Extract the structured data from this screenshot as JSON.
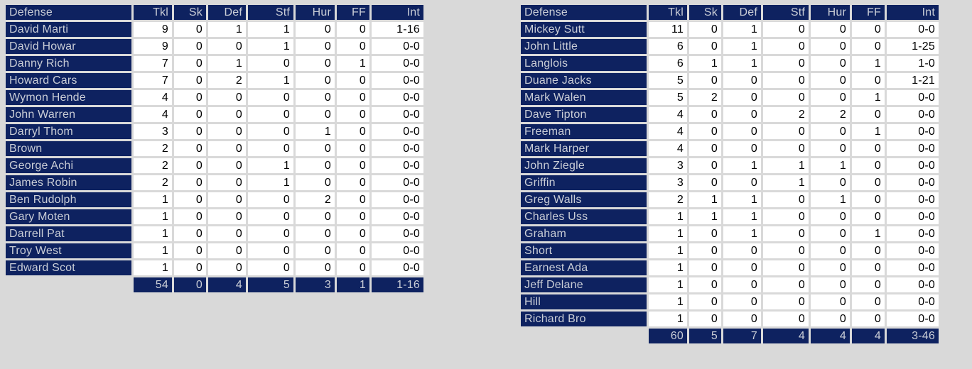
{
  "colors": {
    "page_background": "#d9d9d9",
    "navy_cell": "#0e2260",
    "navy_cell_text": "#c9cdd6",
    "data_cell_background": "#ffffff",
    "data_cell_text": "#000000"
  },
  "tables": [
    {
      "name": "defense-stats-left",
      "header": [
        "Defense",
        "Tkl",
        "Sk",
        "Def",
        "Stf",
        "Hur",
        "FF",
        "Int"
      ],
      "rows": [
        [
          "David Marti",
          "9",
          "0",
          "1",
          "1",
          "0",
          "0",
          "1-16"
        ],
        [
          "David Howar",
          "9",
          "0",
          "0",
          "1",
          "0",
          "0",
          "0-0"
        ],
        [
          "Danny Rich",
          "7",
          "0",
          "1",
          "0",
          "0",
          "1",
          "0-0"
        ],
        [
          "Howard Cars",
          "7",
          "0",
          "2",
          "1",
          "0",
          "0",
          "0-0"
        ],
        [
          "Wymon Hende",
          "4",
          "0",
          "0",
          "0",
          "0",
          "0",
          "0-0"
        ],
        [
          "John Warren",
          "4",
          "0",
          "0",
          "0",
          "0",
          "0",
          "0-0"
        ],
        [
          "Darryl Thom",
          "3",
          "0",
          "0",
          "0",
          "1",
          "0",
          "0-0"
        ],
        [
          "Brown",
          "2",
          "0",
          "0",
          "0",
          "0",
          "0",
          "0-0"
        ],
        [
          "George Achi",
          "2",
          "0",
          "0",
          "1",
          "0",
          "0",
          "0-0"
        ],
        [
          "James Robin",
          "2",
          "0",
          "0",
          "1",
          "0",
          "0",
          "0-0"
        ],
        [
          "Ben Rudolph",
          "1",
          "0",
          "0",
          "0",
          "2",
          "0",
          "0-0"
        ],
        [
          "Gary Moten",
          "1",
          "0",
          "0",
          "0",
          "0",
          "0",
          "0-0"
        ],
        [
          "Darrell Pat",
          "1",
          "0",
          "0",
          "0",
          "0",
          "0",
          "0-0"
        ],
        [
          "Troy West",
          "1",
          "0",
          "0",
          "0",
          "0",
          "0",
          "0-0"
        ],
        [
          "Edward Scot",
          "1",
          "0",
          "0",
          "0",
          "0",
          "0",
          "0-0"
        ]
      ],
      "totals": [
        "",
        "54",
        "0",
        "4",
        "5",
        "3",
        "1",
        "1-16"
      ]
    },
    {
      "name": "defense-stats-right",
      "header": [
        "Defense",
        "Tkl",
        "Sk",
        "Def",
        "Stf",
        "Hur",
        "FF",
        "Int"
      ],
      "rows": [
        [
          "Mickey Sutt",
          "11",
          "0",
          "1",
          "0",
          "0",
          "0",
          "0-0"
        ],
        [
          "John Little",
          "6",
          "0",
          "1",
          "0",
          "0",
          "0",
          "1-25"
        ],
        [
          "Langlois",
          "6",
          "1",
          "1",
          "0",
          "0",
          "1",
          "1-0"
        ],
        [
          "Duane Jacks",
          "5",
          "0",
          "0",
          "0",
          "0",
          "0",
          "1-21"
        ],
        [
          "Mark Walen",
          "5",
          "2",
          "0",
          "0",
          "0",
          "1",
          "0-0"
        ],
        [
          "Dave Tipton",
          "4",
          "0",
          "0",
          "2",
          "2",
          "0",
          "0-0"
        ],
        [
          "Freeman",
          "4",
          "0",
          "0",
          "0",
          "0",
          "1",
          "0-0"
        ],
        [
          "Mark Harper",
          "4",
          "0",
          "0",
          "0",
          "0",
          "0",
          "0-0"
        ],
        [
          "John Ziegle",
          "3",
          "0",
          "1",
          "1",
          "1",
          "0",
          "0-0"
        ],
        [
          "Griffin",
          "3",
          "0",
          "0",
          "1",
          "0",
          "0",
          "0-0"
        ],
        [
          "Greg Walls",
          "2",
          "1",
          "1",
          "0",
          "1",
          "0",
          "0-0"
        ],
        [
          "Charles Uss",
          "1",
          "1",
          "1",
          "0",
          "0",
          "0",
          "0-0"
        ],
        [
          "Graham",
          "1",
          "0",
          "1",
          "0",
          "0",
          "1",
          "0-0"
        ],
        [
          "Short",
          "1",
          "0",
          "0",
          "0",
          "0",
          "0",
          "0-0"
        ],
        [
          "Earnest Ada",
          "1",
          "0",
          "0",
          "0",
          "0",
          "0",
          "0-0"
        ],
        [
          "Jeff Delane",
          "1",
          "0",
          "0",
          "0",
          "0",
          "0",
          "0-0"
        ],
        [
          "Hill",
          "1",
          "0",
          "0",
          "0",
          "0",
          "0",
          "0-0"
        ],
        [
          "Richard Bro",
          "1",
          "0",
          "0",
          "0",
          "0",
          "0",
          "0-0"
        ]
      ],
      "totals": [
        "",
        "60",
        "5",
        "7",
        "4",
        "4",
        "4",
        "3-46"
      ]
    }
  ]
}
